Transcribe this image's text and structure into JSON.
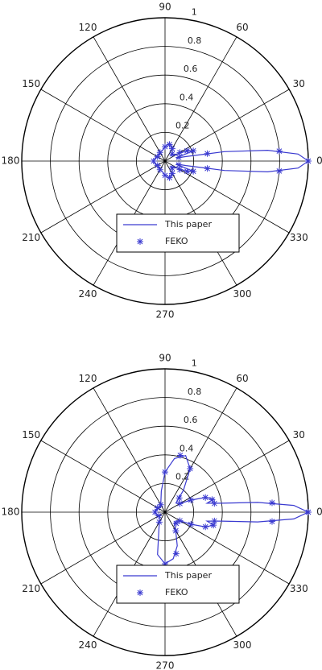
{
  "chart_data": [
    {
      "type": "polar",
      "theta_ticks": [
        0,
        30,
        60,
        90,
        120,
        150,
        180,
        210,
        240,
        270,
        300,
        330
      ],
      "rlim": [
        0,
        1
      ],
      "rticks": [
        0.2,
        0.4,
        0.6,
        0.8,
        1
      ],
      "grid": true,
      "legend": "bottom",
      "series": [
        {
          "name": "This paper",
          "color": "#3a3ad0",
          "style": "line",
          "theta": [
            0,
            3,
            6,
            9,
            12,
            15,
            20,
            25,
            30,
            40,
            50,
            60,
            70,
            80,
            90,
            100,
            120,
            140,
            160,
            180,
            200,
            220,
            240,
            260,
            270,
            280,
            290,
            300,
            310,
            320,
            330,
            335,
            340,
            345,
            348,
            351,
            354,
            357,
            360
          ],
          "r": [
            1.0,
            0.93,
            0.72,
            0.42,
            0.15,
            0.08,
            0.2,
            0.18,
            0.1,
            0.06,
            0.08,
            0.1,
            0.12,
            0.12,
            0.1,
            0.08,
            0.07,
            0.06,
            0.07,
            0.08,
            0.07,
            0.06,
            0.07,
            0.08,
            0.1,
            0.12,
            0.12,
            0.1,
            0.08,
            0.06,
            0.1,
            0.18,
            0.2,
            0.08,
            0.15,
            0.42,
            0.72,
            0.93,
            1.0
          ]
        },
        {
          "name": "FEKO",
          "color": "#3a3ad0",
          "style": "marker",
          "theta": [
            0,
            5,
            10,
            15,
            20,
            25,
            30,
            45,
            60,
            75,
            90,
            120,
            150,
            180,
            210,
            240,
            270,
            285,
            300,
            315,
            330,
            335,
            340,
            345,
            350,
            355
          ],
          "r": [
            1.0,
            0.8,
            0.3,
            0.1,
            0.21,
            0.17,
            0.12,
            0.07,
            0.1,
            0.12,
            0.1,
            0.07,
            0.06,
            0.08,
            0.06,
            0.07,
            0.1,
            0.12,
            0.1,
            0.07,
            0.12,
            0.17,
            0.21,
            0.1,
            0.3,
            0.8
          ]
        }
      ]
    },
    {
      "type": "polar",
      "theta_ticks": [
        0,
        30,
        60,
        90,
        120,
        150,
        180,
        210,
        240,
        270,
        300,
        330
      ],
      "rlim": [
        0,
        1
      ],
      "rticks": [
        0.2,
        0.4,
        0.6,
        0.8,
        1
      ],
      "grid": true,
      "legend": "bottom",
      "series": [
        {
          "name": "This paper",
          "color": "#3a3ad0",
          "style": "line",
          "theta": [
            0,
            3,
            6,
            9,
            12,
            15,
            20,
            25,
            30,
            40,
            50,
            60,
            70,
            80,
            90,
            100,
            120,
            140,
            160,
            180,
            200,
            220,
            240,
            260,
            270,
            280,
            290,
            300,
            310,
            320,
            330,
            335,
            340,
            345,
            348,
            351,
            354,
            357,
            360
          ],
          "r": [
            1.0,
            0.9,
            0.65,
            0.4,
            0.3,
            0.35,
            0.3,
            0.2,
            0.12,
            0.1,
            0.2,
            0.35,
            0.42,
            0.38,
            0.28,
            0.15,
            0.06,
            0.05,
            0.06,
            0.07,
            0.06,
            0.05,
            0.08,
            0.3,
            0.36,
            0.33,
            0.25,
            0.15,
            0.1,
            0.1,
            0.12,
            0.2,
            0.3,
            0.35,
            0.3,
            0.4,
            0.65,
            0.9,
            1.0
          ]
        },
        {
          "name": "FEKO",
          "color": "#3a3ad0",
          "style": "marker",
          "theta": [
            0,
            5,
            10,
            15,
            20,
            25,
            30,
            45,
            60,
            75,
            90,
            120,
            150,
            180,
            210,
            240,
            270,
            285,
            300,
            315,
            330,
            335,
            340,
            345,
            350,
            355
          ],
          "r": [
            1.0,
            0.75,
            0.35,
            0.34,
            0.3,
            0.2,
            0.12,
            0.14,
            0.35,
            0.41,
            0.28,
            0.06,
            0.06,
            0.07,
            0.05,
            0.08,
            0.36,
            0.3,
            0.15,
            0.11,
            0.12,
            0.2,
            0.3,
            0.35,
            0.35,
            0.75
          ]
        }
      ]
    }
  ]
}
